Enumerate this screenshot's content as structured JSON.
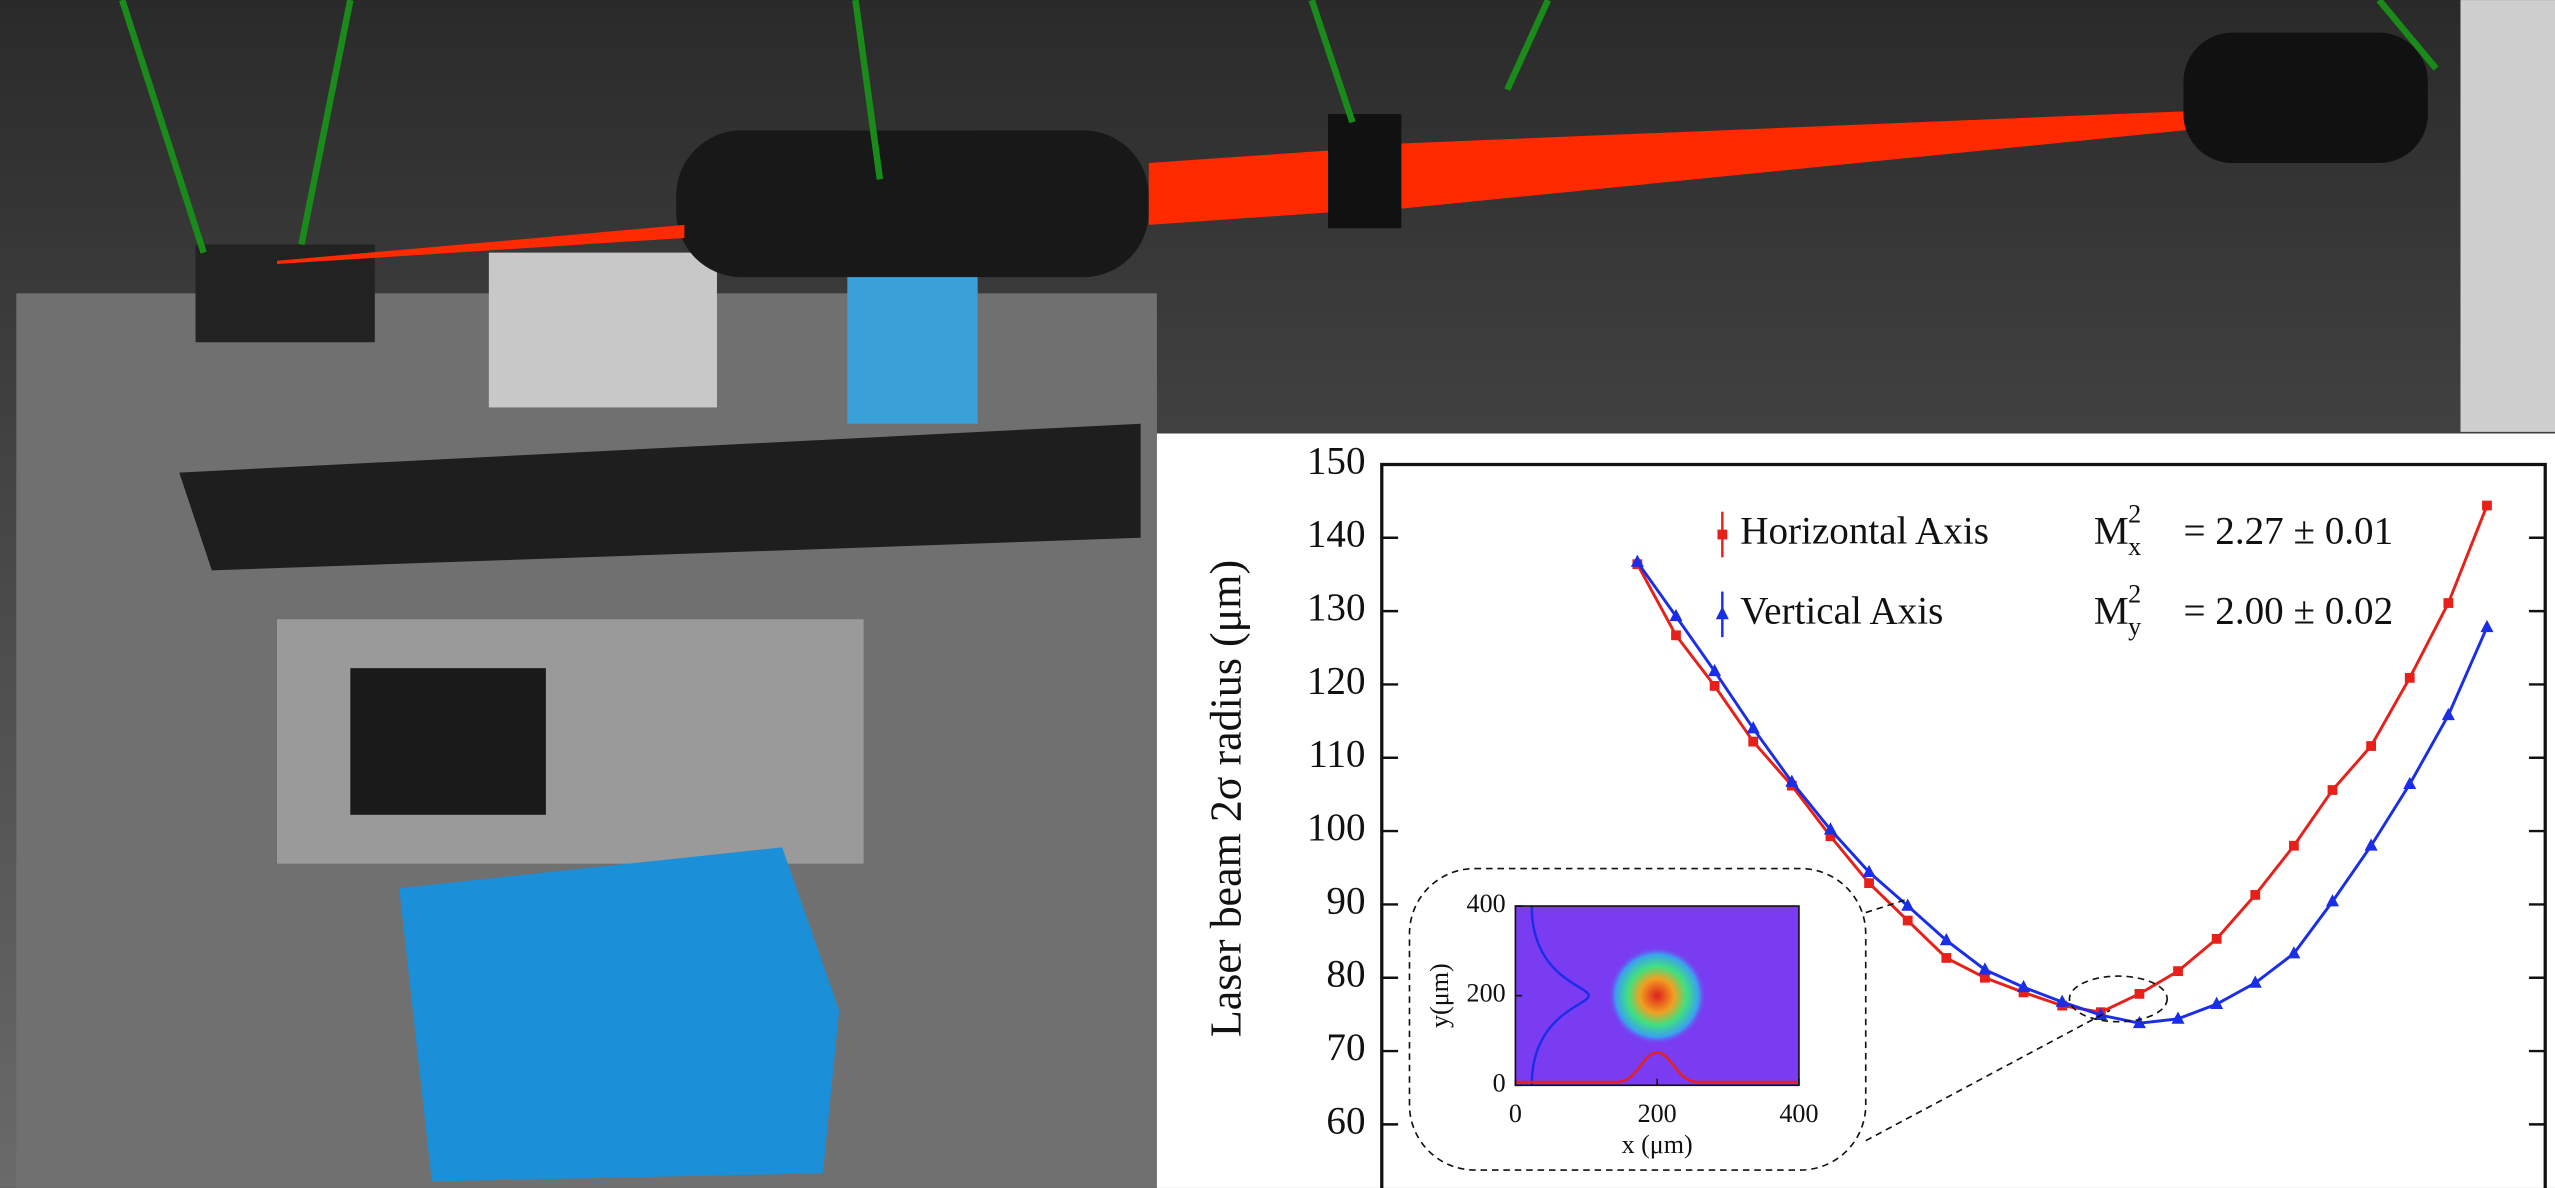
{
  "chart_data": [
    {
      "type": "line",
      "y_label": "Laser beam 2σ radius (μm)",
      "categories": [
        null,
        null,
        null,
        null,
        null,
        null,
        null,
        null,
        null,
        null,
        null,
        null,
        null,
        null,
        null,
        null,
        null,
        null,
        null,
        null,
        null,
        null,
        null
      ],
      "series": [
        {
          "name": "Horizontal Axis",
          "color": "#e8201a",
          "marker": "square",
          "values": [
            136.4,
            126.7,
            119.8,
            112.2,
            106.2,
            99.3,
            92.9,
            87.8,
            82.7,
            80.0,
            78.0,
            76.2,
            75.3,
            77.8,
            80.9,
            85.3,
            91.3,
            98.0,
            105.6,
            111.6,
            120.9,
            131.1,
            144.4
          ]
        },
        {
          "name": "Vertical Axis",
          "color": "#1a2ee8",
          "marker": "triangle",
          "values": [
            136.7,
            129.3,
            121.8,
            114.0,
            106.7,
            100.2,
            94.4,
            89.8,
            85.1,
            81.1,
            78.7,
            76.7,
            74.9,
            73.8,
            74.4,
            76.4,
            79.3,
            83.3,
            90.4,
            98.0,
            106.4,
            115.8,
            127.8
          ]
        }
      ],
      "annotations": [
        {
          "symbol": "M",
          "subscript": "x",
          "superscript": "2",
          "text": "= 2.27 ± 0.01"
        },
        {
          "symbol": "M",
          "subscript": "y",
          "superscript": "2",
          "text": "= 2.00 ± 0.02"
        }
      ],
      "ylim": [
        52,
        150
      ],
      "yticks": [
        60,
        70,
        80,
        90,
        100,
        110,
        120,
        130,
        140,
        150
      ]
    },
    {
      "type": "heatmap",
      "x_label": "x (μm)",
      "y_label": "y(μm)",
      "xlim": [
        0,
        400
      ],
      "ylim": [
        0,
        400
      ],
      "xticks": [
        0,
        200,
        400
      ],
      "yticks": [
        0,
        200,
        400
      ],
      "peak": [
        200,
        200
      ]
    }
  ]
}
